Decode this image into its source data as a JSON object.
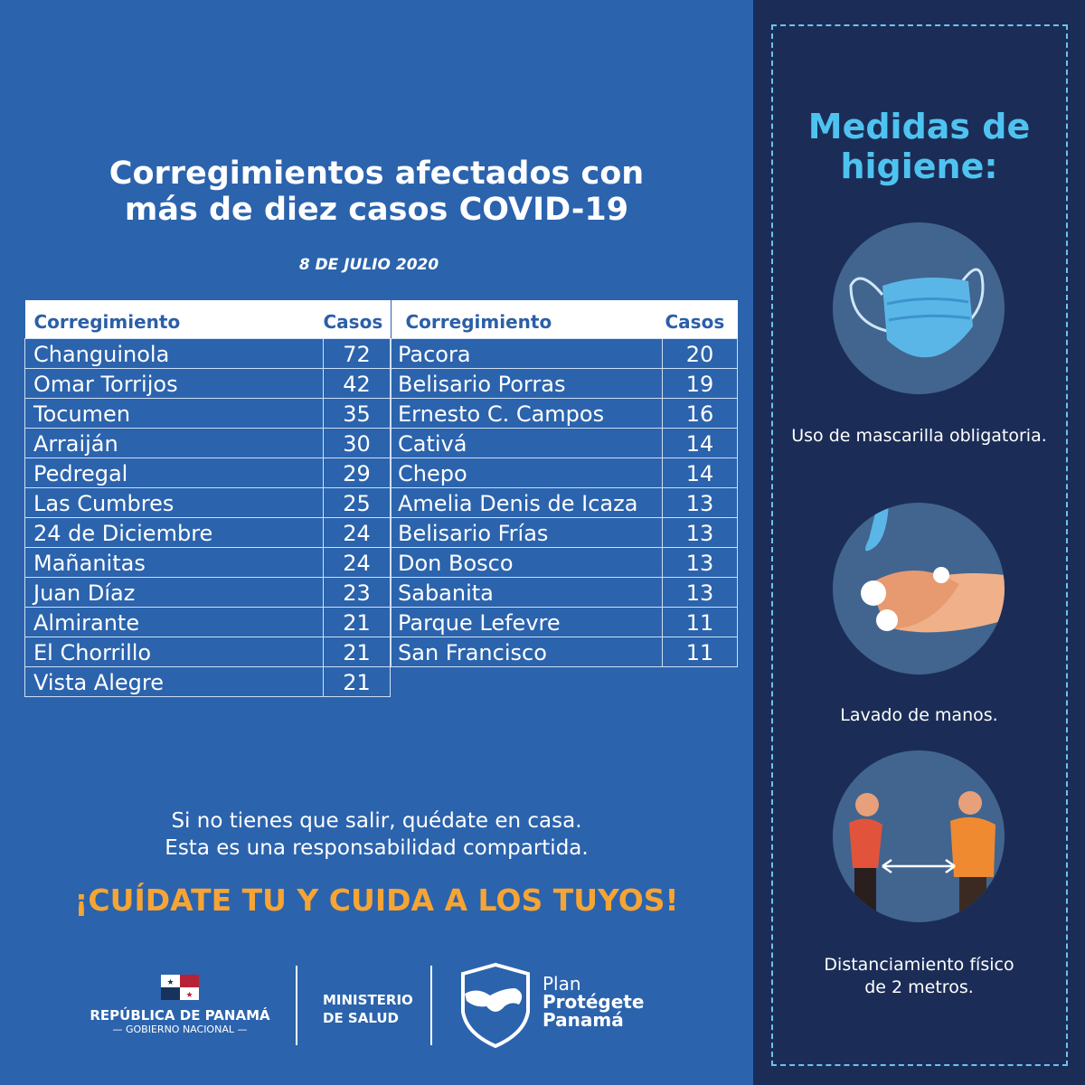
{
  "title": "Corregimientos afectados con más de diez casos COVID-19",
  "date": "8 DE JULIO 2020",
  "table_headers": {
    "name": "Corregimiento",
    "cases": "Casos"
  },
  "left_rows": [
    [
      "Changuinola",
      "72"
    ],
    [
      "Omar Torrijos",
      "42"
    ],
    [
      "Tocumen",
      "35"
    ],
    [
      "Arraiján",
      "30"
    ],
    [
      "Pedregal",
      "29"
    ],
    [
      "Las Cumbres",
      "25"
    ],
    [
      "24 de Diciembre",
      "24"
    ],
    [
      "Mañanitas",
      "24"
    ],
    [
      "Juan Díaz",
      "23"
    ],
    [
      "Almirante",
      "21"
    ],
    [
      "El Chorrillo",
      "21"
    ],
    [
      "Vista Alegre",
      "21"
    ]
  ],
  "right_rows": [
    [
      "Pacora",
      "20"
    ],
    [
      "Belisario Porras",
      "19"
    ],
    [
      "Ernesto C. Campos",
      "16"
    ],
    [
      "Cativá",
      "14"
    ],
    [
      "Chepo",
      "14"
    ],
    [
      "Amelia Denis de Icaza",
      "13"
    ],
    [
      "Belisario Frías",
      "13"
    ],
    [
      "Don Bosco",
      "13"
    ],
    [
      "Sabanita",
      "13"
    ],
    [
      "Parque Lefevre",
      "11"
    ],
    [
      "San Francisco",
      "11"
    ]
  ],
  "message_line1": "Si no tienes que salir, quédate en casa.",
  "message_line2": "Esta es una responsabilidad compartida.",
  "slogan": "¡CUÍDATE TU Y CUIDA A LOS TUYOS!",
  "hygiene": {
    "title": "Medidas de higiene:",
    "items": [
      "Uso de mascarilla obligatoria.",
      "Lavado de manos.",
      "Distanciamiento físico de 2 metros."
    ]
  },
  "logos": {
    "republic": "REPÚBLICA DE PANAMÁ",
    "government": "GOBIERNO NACIONAL",
    "ministry_line1": "MINISTERIO",
    "ministry_line2": "DE SALUD",
    "plan": "Plan",
    "plan_name1": "Protégete",
    "plan_name2": "Panamá"
  },
  "colors": {
    "background": "#2b63ad",
    "panel": "#1b2d57",
    "accent_cyan": "#4fc3f0",
    "accent_orange": "#f6a434"
  }
}
